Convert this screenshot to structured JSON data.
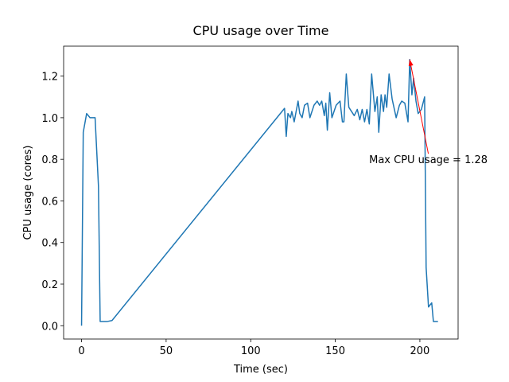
{
  "chart_data": {
    "type": "line",
    "title": "CPU usage over Time",
    "xlabel": "Time (sec)",
    "ylabel": "CPU usage (cores)",
    "xlim": [
      -10.6,
      222.6
    ],
    "ylim": [
      -0.064,
      1.344
    ],
    "xticks": [
      0,
      50,
      100,
      150,
      200
    ],
    "yticks": [
      {
        "value": 0,
        "label": "0.0"
      },
      0.2,
      0.4,
      0.6,
      0.8,
      {
        "value": 1,
        "label": "1.0"
      },
      1.2
    ],
    "series": [
      {
        "name": "CPU usage",
        "color": "#1f77b4",
        "x": [
          0,
          1,
          3,
          5,
          8,
          10,
          11,
          15,
          18,
          120,
          121,
          122,
          123.5,
          124.3,
          125.7,
          128,
          129,
          130.4,
          131.8,
          133.6,
          135,
          137.4,
          139.3,
          140.7,
          142,
          143.5,
          144.4,
          145.3,
          146.7,
          148,
          150.5,
          152.8,
          154.2,
          155.1,
          156.5,
          158,
          161.2,
          163,
          164.5,
          165.9,
          167.3,
          168.7,
          170.1,
          171.5,
          173.4,
          174.8,
          175.7,
          177.1,
          178.5,
          179.4,
          180.4,
          181.8,
          183.6,
          186,
          187.9,
          189.3,
          191.1,
          193,
          194,
          195.3,
          196.3,
          197.7,
          199,
          200.9,
          202.8,
          203.7,
          205.1,
          207,
          208,
          210.7
        ],
        "values": [
          0,
          0.93,
          1.02,
          1.0,
          1.0,
          0.67,
          0.02,
          0.02,
          0.025,
          1.045,
          0.91,
          1.02,
          1.0,
          1.03,
          0.98,
          1.08,
          1.02,
          1.0,
          1.06,
          1.07,
          1.0,
          1.06,
          1.08,
          1.06,
          1.08,
          1.01,
          1.07,
          0.94,
          1.12,
          1.0,
          1.06,
          1.08,
          0.98,
          0.98,
          1.21,
          1.05,
          1.01,
          1.04,
          0.99,
          1.04,
          0.98,
          1.04,
          0.97,
          1.21,
          1.03,
          1.1,
          0.93,
          1.11,
          1.03,
          1.11,
          1.05,
          1.21,
          1.09,
          1.0,
          1.06,
          1.08,
          1.07,
          0.98,
          1.28,
          1.11,
          1.19,
          1.08,
          1.02,
          1.04,
          1.1,
          0.28,
          0.09,
          0.11,
          0.02,
          0.02
        ]
      }
    ],
    "annotation": {
      "text": "Max CPU usage = 1.28",
      "x": 194,
      "y": 1.28,
      "text_x": 170,
      "text_y": 0.8,
      "color": "red"
    }
  }
}
